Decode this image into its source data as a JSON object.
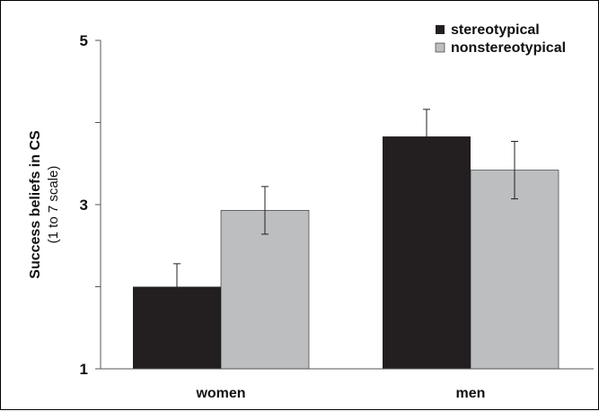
{
  "chart_data": {
    "type": "bar",
    "title": "",
    "xlabel": "",
    "ylabel": "Success beliefs in CS",
    "ylabel_sub": "(1 to 7 scale)",
    "categories": [
      "women",
      "men"
    ],
    "ylim": [
      1,
      5
    ],
    "yticks": [
      "1",
      "3",
      "5"
    ],
    "grid": false,
    "legend_position": "top-right",
    "series": [
      {
        "name": "stereotypical",
        "color": "#231f20",
        "values": [
          2.0,
          3.83
        ],
        "error": [
          0.28,
          0.33
        ]
      },
      {
        "name": "nonstereotypical",
        "color": "#bcbec0",
        "values": [
          2.93,
          3.42
        ],
        "error": [
          0.29,
          0.35
        ]
      }
    ]
  }
}
